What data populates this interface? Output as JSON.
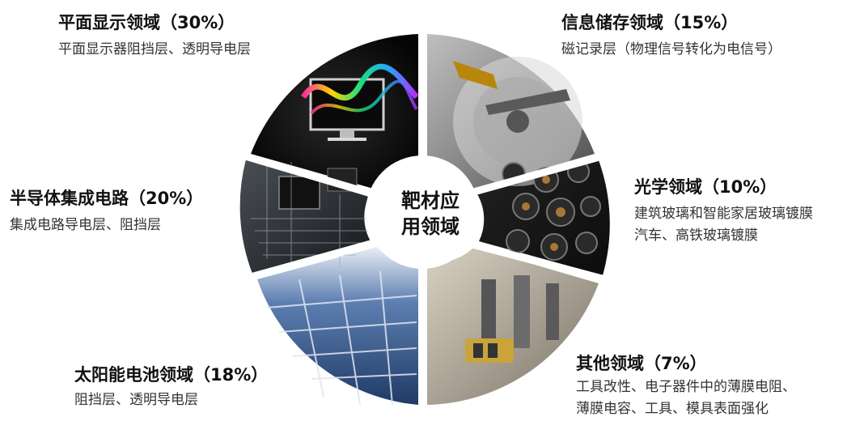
{
  "center": {
    "line1": "靶材应",
    "line2": "用领域"
  },
  "segments": [
    {
      "title": "平面显示领域（30%）",
      "desc": [
        "平面显示器阻挡层、透明导电层"
      ]
    },
    {
      "title": "信息储存领域（15%）",
      "desc": [
        "磁记录层（物理信号转化为电信号）"
      ]
    },
    {
      "title": "光学领域（10%）",
      "desc": [
        "建筑玻璃和智能家居玻璃镀膜",
        "汽车、高铁玻璃镀膜"
      ]
    },
    {
      "title": "其他领域（7%）",
      "desc": [
        "工具改性、电子器件中的薄膜电阻、",
        "薄膜电容、工具、模具表面强化"
      ]
    },
    {
      "title": "太阳能电池领域（18%）",
      "desc": [
        "阻挡层、透明导电层"
      ]
    },
    {
      "title": "半导体集成电路（20%）",
      "desc": [
        "集成电路导电层、阻挡层"
      ]
    }
  ],
  "colors": {
    "ring_dark": "#1b1b1b",
    "center_bg": "#ffffff"
  }
}
